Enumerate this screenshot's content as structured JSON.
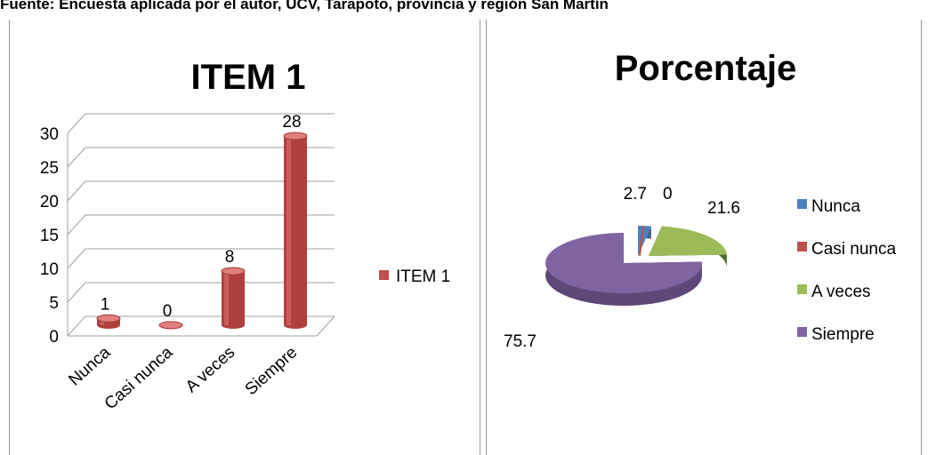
{
  "caption": "Fuente: Encuesta aplicada por el autor, UCV, Tarapoto, provincia y región San Martín",
  "chart_data": [
    {
      "type": "bar",
      "title": "ITEM 1",
      "categories": [
        "Nunca",
        "Casi nunca",
        "A veces",
        "Siempre"
      ],
      "series": [
        {
          "name": "ITEM 1",
          "values": [
            1,
            0,
            8,
            28
          ],
          "color": "#c0504d"
        }
      ],
      "ylim": [
        0,
        30
      ],
      "yticks": [
        0,
        5,
        10,
        15,
        20,
        25,
        30
      ],
      "grid": true,
      "legend": "right",
      "style": "3d-cylinder"
    },
    {
      "type": "pie",
      "title": "Porcentaje",
      "categories": [
        "Nunca",
        "Casi nunca",
        "A veces",
        "Siempre"
      ],
      "values": [
        2.7,
        0,
        21.6,
        75.7
      ],
      "colors": [
        "#4f81bd",
        "#c0504d",
        "#9bbb59",
        "#8064a2"
      ],
      "legend": "right",
      "style": "3d-exploded"
    }
  ]
}
